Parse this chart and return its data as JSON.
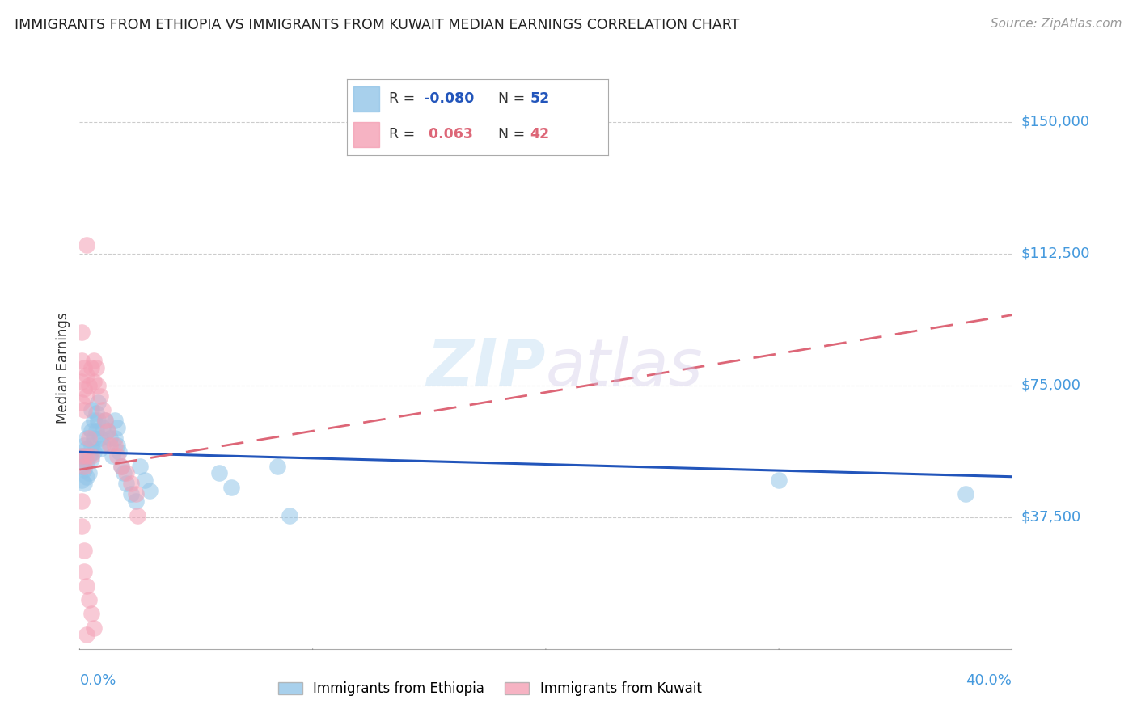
{
  "title": "IMMIGRANTS FROM ETHIOPIA VS IMMIGRANTS FROM KUWAIT MEDIAN EARNINGS CORRELATION CHART",
  "source": "Source: ZipAtlas.com",
  "ylabel": "Median Earnings",
  "ytick_labels": [
    "$150,000",
    "$112,500",
    "$75,000",
    "$37,500"
  ],
  "ytick_values": [
    150000,
    112500,
    75000,
    37500
  ],
  "y_min": 0,
  "y_max": 160000,
  "x_min": 0.0,
  "x_max": 0.4,
  "watermark": "ZIPatlas",
  "label_ethiopia": "Immigrants from Ethiopia",
  "label_kuwait": "Immigrants from Kuwait",
  "color_ethiopia": "#92C5E8",
  "color_kuwait": "#F4A0B5",
  "color_line_ethiopia": "#2255BB",
  "color_line_kuwait": "#DD6677",
  "color_axis_labels": "#4499DD",
  "ethiopia_x": [
    0.001,
    0.001,
    0.001,
    0.002,
    0.002,
    0.002,
    0.002,
    0.003,
    0.003,
    0.003,
    0.003,
    0.004,
    0.004,
    0.004,
    0.005,
    0.005,
    0.005,
    0.005,
    0.006,
    0.006,
    0.006,
    0.007,
    0.007,
    0.008,
    0.008,
    0.009,
    0.009,
    0.01,
    0.01,
    0.011,
    0.012,
    0.013,
    0.014,
    0.015,
    0.015,
    0.016,
    0.016,
    0.017,
    0.018,
    0.019,
    0.02,
    0.022,
    0.024,
    0.026,
    0.028,
    0.03,
    0.06,
    0.065,
    0.085,
    0.09,
    0.3,
    0.38
  ],
  "ethiopia_y": [
    55000,
    52000,
    48000,
    58000,
    55000,
    51000,
    47000,
    60000,
    57000,
    53000,
    49000,
    63000,
    55000,
    50000,
    68000,
    62000,
    58000,
    54000,
    65000,
    60000,
    56000,
    67000,
    62000,
    70000,
    65000,
    60000,
    57000,
    63000,
    58000,
    65000,
    62000,
    60000,
    55000,
    65000,
    60000,
    63000,
    58000,
    56000,
    52000,
    50000,
    47000,
    44000,
    42000,
    52000,
    48000,
    45000,
    50000,
    46000,
    52000,
    38000,
    48000,
    44000
  ],
  "kuwait_x": [
    0.001,
    0.001,
    0.001,
    0.001,
    0.001,
    0.002,
    0.002,
    0.002,
    0.002,
    0.003,
    0.003,
    0.003,
    0.003,
    0.004,
    0.004,
    0.005,
    0.005,
    0.006,
    0.006,
    0.007,
    0.008,
    0.009,
    0.01,
    0.011,
    0.012,
    0.013,
    0.015,
    0.016,
    0.018,
    0.02,
    0.022,
    0.024,
    0.025,
    0.001,
    0.001,
    0.002,
    0.002,
    0.003,
    0.004,
    0.005,
    0.006,
    0.003
  ],
  "kuwait_y": [
    90000,
    82000,
    76000,
    70000,
    55000,
    80000,
    74000,
    68000,
    52000,
    115000,
    78000,
    72000,
    55000,
    75000,
    60000,
    80000,
    55000,
    82000,
    76000,
    80000,
    75000,
    72000,
    68000,
    65000,
    62000,
    58000,
    58000,
    55000,
    52000,
    50000,
    47000,
    44000,
    38000,
    42000,
    35000,
    28000,
    22000,
    18000,
    14000,
    10000,
    6000,
    4000
  ],
  "eth_line_x": [
    0.0,
    0.4
  ],
  "eth_line_y": [
    56000,
    49000
  ],
  "kuw_line_x": [
    0.0,
    0.4
  ],
  "kuw_line_y": [
    51000,
    95000
  ]
}
